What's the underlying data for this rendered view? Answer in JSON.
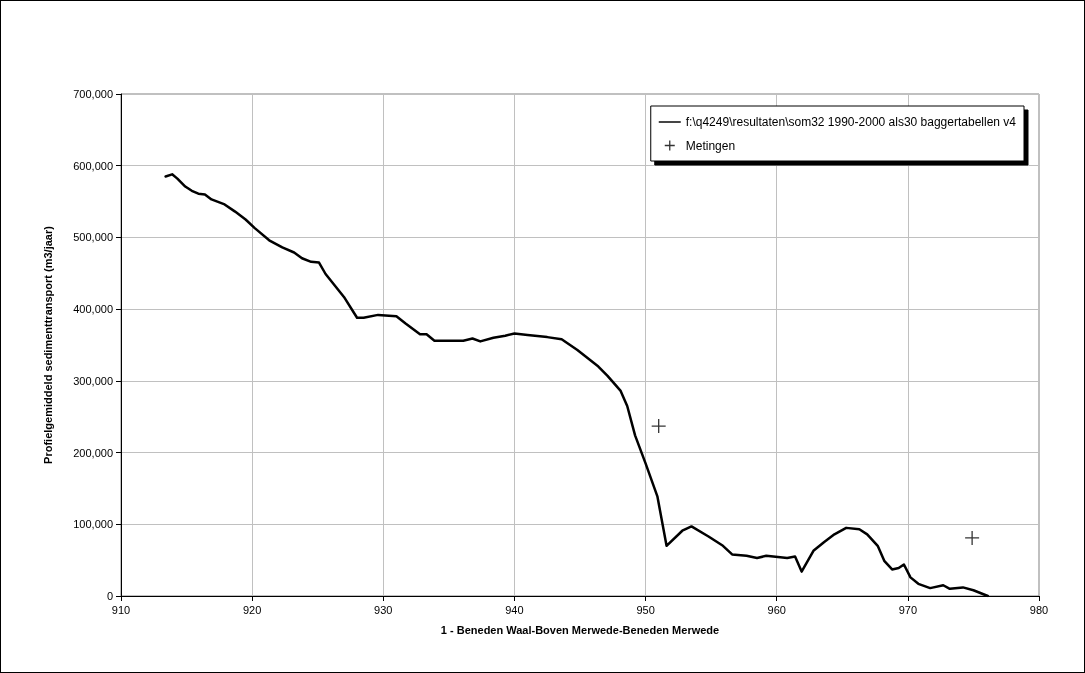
{
  "chart_data": {
    "type": "line",
    "xlabel": "1 - Beneden Waal-Boven Merwede-Beneden Merwede",
    "ylabel": "Profielgemiddeld sedimenttransport (m3/jaar)",
    "xlim": [
      910,
      980
    ],
    "xticks": [
      910,
      920,
      930,
      940,
      950,
      960,
      970,
      980
    ],
    "ylim": [
      0,
      700000
    ],
    "yticks": [
      0,
      {
        "value": 100000,
        "label": "100,000"
      },
      {
        "value": 200000,
        "label": "200,000"
      },
      {
        "value": 300000,
        "label": "300,000"
      },
      {
        "value": 400000,
        "label": "400,000"
      },
      {
        "value": 500000,
        "label": "500,000"
      },
      {
        "value": 600000,
        "label": "600,000"
      },
      {
        "value": 700000,
        "label": "700,000"
      }
    ],
    "grid": true,
    "legend": "top right",
    "series": [
      {
        "name": "f:\\q4249\\resultaten\\som32 1990-2000 als30 baggertabellen v4",
        "color": "#000000",
        "marker": "none",
        "x": [
          913.4,
          913.9,
          914.3,
          914.9,
          915.4,
          915.9,
          916.4,
          916.9,
          917.9,
          918.7,
          919.5,
          920.2,
          921.3,
          922.3,
          923.2,
          923.8,
          924.5,
          925.1,
          925.6,
          927.0,
          928.0,
          928.5,
          929.6,
          931.0,
          931.7,
          932.8,
          933.3,
          933.9,
          935.3,
          936.1,
          936.8,
          937.4,
          938.4,
          939.3,
          940.0,
          941.0,
          942.5,
          943.6,
          944.8,
          946.4,
          947.1,
          948.1,
          948.6,
          949.2,
          950.0,
          950.9,
          951.6,
          952.8,
          953.5,
          954.8,
          955.9,
          956.6,
          957.7,
          958.5,
          959.2,
          960.8,
          961.4,
          961.9,
          962.8,
          963.6,
          964.4,
          965.3,
          966.3,
          966.9,
          967.7,
          968.2,
          968.8,
          969.3,
          969.7,
          970.2,
          970.8,
          971.7,
          972.7,
          973.2,
          974.2,
          975.0,
          976.1
        ],
        "values": [
          585000,
          588000,
          582000,
          571000,
          565000,
          561000,
          560000,
          553000,
          546000,
          536000,
          525000,
          513000,
          496000,
          486000,
          479000,
          471000,
          466000,
          465000,
          449000,
          417000,
          388000,
          388000,
          392000,
          390000,
          380000,
          365000,
          365000,
          356000,
          356000,
          356000,
          359000,
          355000,
          360000,
          363000,
          366000,
          364000,
          361000,
          358000,
          343000,
          320000,
          307000,
          286000,
          265000,
          224000,
          185000,
          139000,
          70000,
          91000,
          97000,
          83000,
          70000,
          58000,
          56000,
          53000,
          56000,
          53000,
          55000,
          34000,
          63000,
          75000,
          86000,
          95000,
          93000,
          86000,
          70000,
          49000,
          37000,
          39000,
          44000,
          26000,
          17000,
          11000,
          15000,
          10000,
          12000,
          8000,
          0
        ]
      },
      {
        "name": "Metingen",
        "color": "#000000",
        "type": "scatter",
        "marker": "cross",
        "x": [
          951.0,
          974.9
        ],
        "values": [
          237000,
          81000
        ]
      }
    ]
  }
}
